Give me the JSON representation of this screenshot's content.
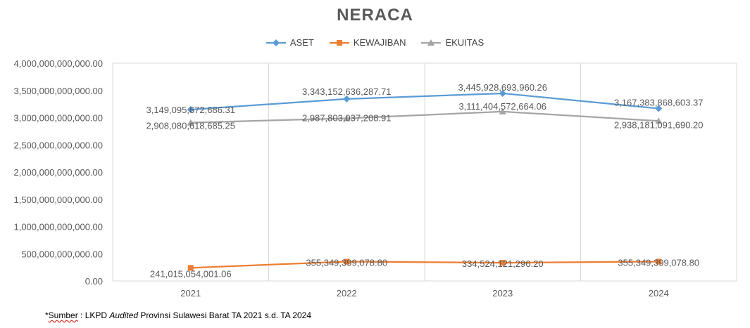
{
  "chart_data": {
    "type": "line",
    "title": "NERACA",
    "categories": [
      "2021",
      "2022",
      "2023",
      "2024"
    ],
    "ylim": [
      0,
      4000000000000
    ],
    "y_ticks": [
      0,
      500000000000,
      1000000000000,
      1500000000000,
      2000000000000,
      2500000000000,
      3000000000000,
      3500000000000,
      4000000000000
    ],
    "y_tick_labels": [
      "0.00",
      "500,000,000,000.00",
      "1,000,000,000,000.00",
      "1,500,000,000,000.00",
      "2,000,000,000,000.00",
      "2,500,000,000,000.00",
      "3,000,000,000,000.00",
      "3,500,000,000,000.00",
      "4,000,000,000,000.00"
    ],
    "grid": "vertical",
    "legend_position": "top-center",
    "series": [
      {
        "name": "ASET",
        "color": "#5b9bd5",
        "marker": "diamond",
        "values": [
          3149095672686.31,
          3343152636287.71,
          3445928693960.26,
          3167383868603.37
        ],
        "labels": [
          "3,149,095,672,686.31",
          "3,343,152,636,287.71",
          "3,445,928,693,960.26",
          "3,167,383,868,603.37"
        ]
      },
      {
        "name": "KEWAJIBAN",
        "color": "#ed7d31",
        "marker": "square",
        "values": [
          241015054001.06,
          355349399078.8,
          334524121296.2,
          355349399078.8
        ],
        "labels": [
          "241,015,054,001.06",
          "355,349,399,078.80",
          "334,524,121,296.20",
          "355,349,399,078.80"
        ]
      },
      {
        "name": "EKUITAS",
        "color": "#a5a5a5",
        "marker": "triangle",
        "values": [
          2908080618685.25,
          2987803037208.91,
          3111404572664.06,
          2938181091690.2
        ],
        "labels": [
          "2,908,080,618,685.25",
          "2,987,803,037,208.91",
          "3,111,404,572,664.06",
          "2,938,181,091,690.20"
        ]
      }
    ]
  },
  "footnote": {
    "prefix": "*",
    "source_word": "Sumber",
    "middle": " : LKPD ",
    "audited": "Audited",
    "suffix": " Provinsi Sulawesi Barat TA 2021 s.d. TA 2024"
  }
}
